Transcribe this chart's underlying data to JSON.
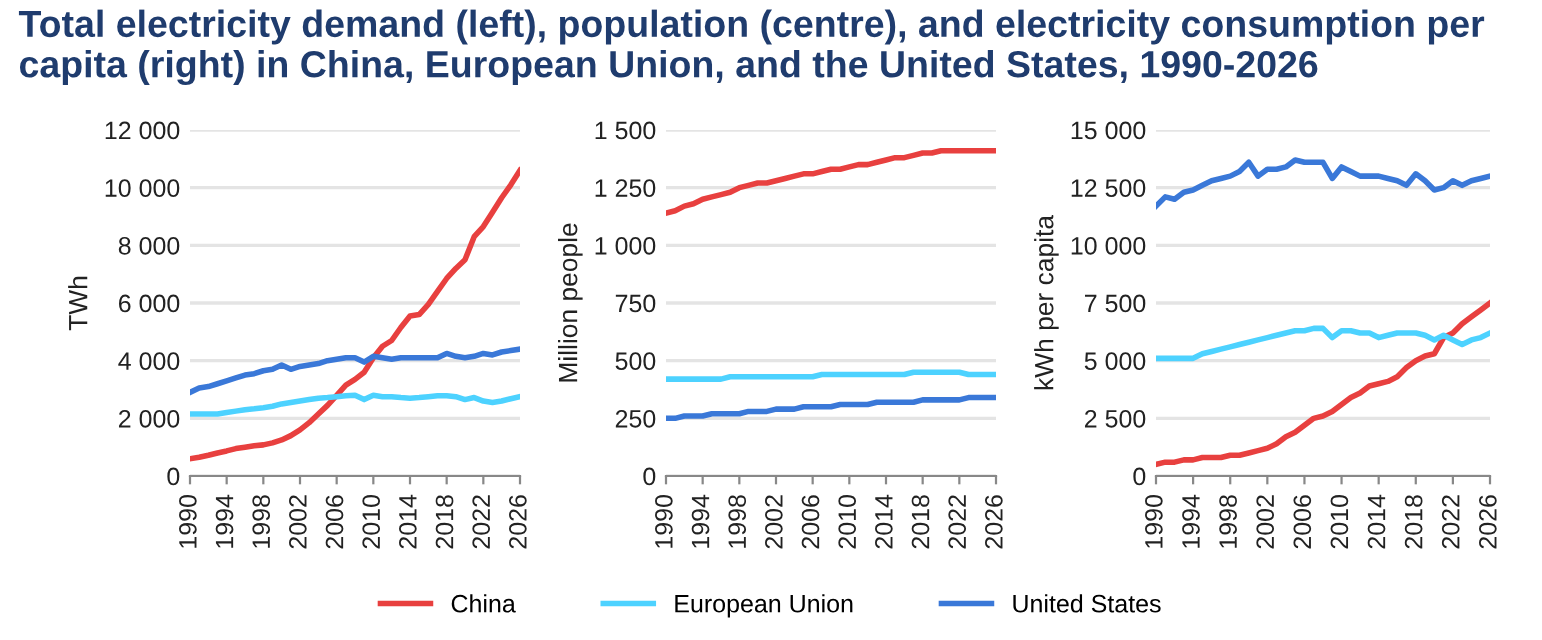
{
  "chart_data": [
    {
      "type": "line",
      "title": "Total electricity demand (left), population (centre), and electricity consumption per capita (right) in China, European Union, and the United States, 1990-2026",
      "ylabel": "TWh",
      "legend": "bottom",
      "grid": "y",
      "x": [
        1990,
        1991,
        1992,
        1993,
        1994,
        1995,
        1996,
        1997,
        1998,
        1999,
        2000,
        2001,
        2002,
        2003,
        2004,
        2005,
        2006,
        2007,
        2008,
        2009,
        2010,
        2011,
        2012,
        2013,
        2014,
        2015,
        2016,
        2017,
        2018,
        2019,
        2020,
        2021,
        2022,
        2023,
        2024,
        2025,
        2026
      ],
      "xlim": [
        1990,
        2026
      ],
      "xticks": [
        1990,
        1994,
        1998,
        2002,
        2006,
        2010,
        2014,
        2018,
        2022,
        2026
      ],
      "ylim": [
        0,
        12000
      ],
      "yticks": [
        0,
        {
          "value": 2000,
          "label": "2 000"
        },
        {
          "value": 4000,
          "label": "4 000"
        },
        {
          "value": 6000,
          "label": "6 000"
        },
        {
          "value": 8000,
          "label": "8 000"
        },
        {
          "value": 10000,
          "label": "10 000"
        },
        {
          "value": 12000,
          "label": "12 000"
        }
      ],
      "series": [
        {
          "name": "China",
          "color": "#e8403f",
          "values": [
            600,
            650,
            720,
            800,
            870,
            950,
            1000,
            1050,
            1080,
            1150,
            1250,
            1400,
            1600,
            1850,
            2150,
            2450,
            2800,
            3150,
            3350,
            3600,
            4100,
            4500,
            4700,
            5150,
            5550,
            5600,
            5950,
            6400,
            6850,
            7200,
            7500,
            8300,
            8650,
            9150,
            9650,
            10100,
            10600
          ]
        },
        {
          "name": "European Union",
          "color": "#4dd2ff",
          "values": [
            2150,
            2150,
            2150,
            2150,
            2200,
            2250,
            2300,
            2330,
            2370,
            2420,
            2500,
            2550,
            2600,
            2650,
            2700,
            2720,
            2750,
            2780,
            2800,
            2650,
            2800,
            2750,
            2750,
            2720,
            2700,
            2720,
            2750,
            2780,
            2780,
            2750,
            2650,
            2720,
            2600,
            2550,
            2600,
            2680,
            2750
          ]
        },
        {
          "name": "United States",
          "color": "#3a78d8",
          "values": [
            2900,
            3050,
            3100,
            3200,
            3300,
            3400,
            3500,
            3550,
            3650,
            3700,
            3850,
            3700,
            3800,
            3850,
            3900,
            4000,
            4050,
            4100,
            4100,
            3950,
            4150,
            4100,
            4050,
            4100,
            4100,
            4100,
            4100,
            4100,
            4250,
            4150,
            4100,
            4150,
            4250,
            4200,
            4300,
            4350,
            4400
          ]
        }
      ]
    },
    {
      "type": "line",
      "ylabel": "Million people",
      "grid": "y",
      "x": [
        1990,
        1991,
        1992,
        1993,
        1994,
        1995,
        1996,
        1997,
        1998,
        1999,
        2000,
        2001,
        2002,
        2003,
        2004,
        2005,
        2006,
        2007,
        2008,
        2009,
        2010,
        2011,
        2012,
        2013,
        2014,
        2015,
        2016,
        2017,
        2018,
        2019,
        2020,
        2021,
        2022,
        2023,
        2024,
        2025,
        2026
      ],
      "xlim": [
        1990,
        2026
      ],
      "xticks": [
        1990,
        1994,
        1998,
        2002,
        2006,
        2010,
        2014,
        2018,
        2022,
        2026
      ],
      "ylim": [
        0,
        1500
      ],
      "yticks": [
        0,
        250,
        500,
        750,
        {
          "value": 1000,
          "label": "1 000"
        },
        {
          "value": 1250,
          "label": "1 250"
        },
        {
          "value": 1500,
          "label": "1 500"
        }
      ],
      "series": [
        {
          "name": "China",
          "color": "#e8403f",
          "values": [
            1140,
            1150,
            1170,
            1180,
            1200,
            1210,
            1220,
            1230,
            1250,
            1260,
            1270,
            1270,
            1280,
            1290,
            1300,
            1310,
            1310,
            1320,
            1330,
            1330,
            1340,
            1350,
            1350,
            1360,
            1370,
            1380,
            1380,
            1390,
            1400,
            1400,
            1410,
            1410,
            1410,
            1410,
            1410,
            1410,
            1410
          ]
        },
        {
          "name": "European Union",
          "color": "#4dd2ff",
          "values": [
            420,
            420,
            420,
            420,
            420,
            420,
            420,
            430,
            430,
            430,
            430,
            430,
            430,
            430,
            430,
            430,
            430,
            440,
            440,
            440,
            440,
            440,
            440,
            440,
            440,
            440,
            440,
            450,
            450,
            450,
            450,
            450,
            450,
            440,
            440,
            440,
            440
          ]
        },
        {
          "name": "United States",
          "color": "#3a78d8",
          "values": [
            250,
            250,
            260,
            260,
            260,
            270,
            270,
            270,
            270,
            280,
            280,
            280,
            290,
            290,
            290,
            300,
            300,
            300,
            300,
            310,
            310,
            310,
            310,
            320,
            320,
            320,
            320,
            320,
            330,
            330,
            330,
            330,
            330,
            340,
            340,
            340,
            340
          ]
        }
      ]
    },
    {
      "type": "line",
      "ylabel": "kWh per capita",
      "grid": "y",
      "x": [
        1990,
        1991,
        1992,
        1993,
        1994,
        1995,
        1996,
        1997,
        1998,
        1999,
        2000,
        2001,
        2002,
        2003,
        2004,
        2005,
        2006,
        2007,
        2008,
        2009,
        2010,
        2011,
        2012,
        2013,
        2014,
        2015,
        2016,
        2017,
        2018,
        2019,
        2020,
        2021,
        2022,
        2023,
        2024,
        2025,
        2026
      ],
      "xlim": [
        1990,
        2026
      ],
      "xticks": [
        1990,
        1994,
        1998,
        2002,
        2006,
        2010,
        2014,
        2018,
        2022,
        2026
      ],
      "ylim": [
        0,
        15000
      ],
      "yticks": [
        0,
        {
          "value": 2500,
          "label": "2 500"
        },
        {
          "value": 5000,
          "label": "5 000"
        },
        {
          "value": 7500,
          "label": "7 500"
        },
        {
          "value": 10000,
          "label": "10 000"
        },
        {
          "value": 12500,
          "label": "12 500"
        },
        {
          "value": 15000,
          "label": "15 000"
        }
      ],
      "series": [
        {
          "name": "China",
          "color": "#e8403f",
          "values": [
            500,
            600,
            600,
            700,
            700,
            800,
            800,
            800,
            900,
            900,
            1000,
            1100,
            1200,
            1400,
            1700,
            1900,
            2200,
            2500,
            2600,
            2800,
            3100,
            3400,
            3600,
            3900,
            4000,
            4100,
            4300,
            4700,
            5000,
            5200,
            5300,
            6000,
            6200,
            6600,
            6900,
            7200,
            7500
          ]
        },
        {
          "name": "European Union",
          "color": "#4dd2ff",
          "values": [
            5100,
            5100,
            5100,
            5100,
            5100,
            5300,
            5400,
            5500,
            5600,
            5700,
            5800,
            5900,
            6000,
            6100,
            6200,
            6300,
            6300,
            6400,
            6400,
            6000,
            6300,
            6300,
            6200,
            6200,
            6000,
            6100,
            6200,
            6200,
            6200,
            6100,
            5900,
            6100,
            5900,
            5700,
            5900,
            6000,
            6200
          ]
        },
        {
          "name": "United States",
          "color": "#3a78d8",
          "values": [
            11700,
            12100,
            12000,
            12300,
            12400,
            12600,
            12800,
            12900,
            13000,
            13200,
            13600,
            13000,
            13300,
            13300,
            13400,
            13700,
            13600,
            13600,
            13600,
            12900,
            13400,
            13200,
            13000,
            13000,
            13000,
            12900,
            12800,
            12600,
            13100,
            12800,
            12400,
            12500,
            12800,
            12600,
            12800,
            12900,
            13000
          ]
        }
      ]
    }
  ]
}
